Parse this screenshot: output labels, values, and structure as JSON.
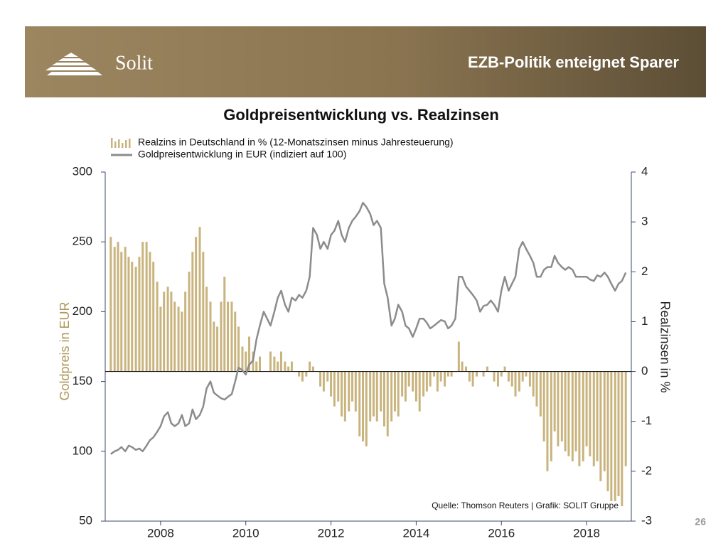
{
  "header": {
    "logo": "Solit",
    "title": "EZB-Politik enteignet Sparer"
  },
  "page_number": "26",
  "chart_data": {
    "type": "combo",
    "title": "Goldpreisentwicklung vs. Realzinsen",
    "ylabel": "Goldpreis in EUR",
    "y2label": "Realzinsen in %",
    "source": "Quelle: Thomson Reuters | Grafik: SOLIT Gruppe",
    "xlim": [
      2006.7,
      2019.05
    ],
    "xticks": [
      2008,
      2010,
      2012,
      2014,
      2016,
      2018
    ],
    "ylim": [
      50,
      300
    ],
    "yticks": [
      50,
      100,
      150,
      200,
      250,
      300
    ],
    "y2lim": [
      -3,
      4
    ],
    "y2ticks": [
      -3,
      -2,
      -1,
      0,
      1,
      2,
      3,
      4
    ],
    "legend": "top-left",
    "x": [
      2006.83,
      2006.92,
      2007.0,
      2007.08,
      2007.17,
      2007.25,
      2007.33,
      2007.42,
      2007.5,
      2007.58,
      2007.67,
      2007.75,
      2007.83,
      2007.92,
      2008.0,
      2008.08,
      2008.17,
      2008.25,
      2008.33,
      2008.42,
      2008.5,
      2008.58,
      2008.67,
      2008.75,
      2008.83,
      2008.92,
      2009.0,
      2009.08,
      2009.17,
      2009.25,
      2009.33,
      2009.42,
      2009.5,
      2009.58,
      2009.67,
      2009.75,
      2009.83,
      2009.92,
      2010.0,
      2010.08,
      2010.17,
      2010.25,
      2010.33,
      2010.42,
      2010.5,
      2010.58,
      2010.67,
      2010.75,
      2010.83,
      2010.92,
      2011.0,
      2011.08,
      2011.17,
      2011.25,
      2011.33,
      2011.42,
      2011.5,
      2011.58,
      2011.67,
      2011.75,
      2011.83,
      2011.92,
      2012.0,
      2012.08,
      2012.17,
      2012.25,
      2012.33,
      2012.42,
      2012.5,
      2012.58,
      2012.67,
      2012.75,
      2012.83,
      2012.92,
      2013.0,
      2013.08,
      2013.17,
      2013.25,
      2013.33,
      2013.42,
      2013.5,
      2013.58,
      2013.67,
      2013.75,
      2013.83,
      2013.92,
      2014.0,
      2014.08,
      2014.17,
      2014.25,
      2014.33,
      2014.42,
      2014.5,
      2014.58,
      2014.67,
      2014.75,
      2014.83,
      2014.92,
      2015.0,
      2015.08,
      2015.17,
      2015.25,
      2015.33,
      2015.42,
      2015.5,
      2015.58,
      2015.67,
      2015.75,
      2015.83,
      2015.92,
      2016.0,
      2016.08,
      2016.17,
      2016.25,
      2016.33,
      2016.42,
      2016.5,
      2016.58,
      2016.67,
      2016.75,
      2016.83,
      2016.92,
      2017.0,
      2017.08,
      2017.17,
      2017.25,
      2017.33,
      2017.42,
      2017.5,
      2017.58,
      2017.67,
      2017.75,
      2017.83,
      2017.92,
      2018.0,
      2018.08,
      2018.17,
      2018.25,
      2018.33,
      2018.42,
      2018.5,
      2018.58,
      2018.67,
      2018.75,
      2018.83,
      2018.92
    ],
    "series": [
      {
        "name": "Realzins in Deutschland in % (12-Monatszinsen minus Jahresteuerung)",
        "type": "bar",
        "axis": "y2",
        "color": "#c9b47e",
        "values": [
          2.7,
          2.5,
          2.6,
          2.4,
          2.5,
          2.3,
          2.2,
          2.1,
          2.3,
          2.6,
          2.6,
          2.4,
          2.2,
          1.8,
          1.3,
          1.6,
          1.7,
          1.6,
          1.4,
          1.3,
          1.2,
          1.6,
          2.0,
          2.4,
          2.7,
          2.9,
          2.4,
          1.7,
          1.4,
          1.0,
          0.9,
          1.4,
          1.9,
          1.4,
          1.4,
          1.2,
          0.9,
          0.5,
          0.4,
          0.7,
          0.4,
          0.2,
          0.3,
          0.0,
          0.0,
          0.4,
          0.3,
          0.2,
          0.4,
          0.2,
          0.1,
          0.2,
          0.0,
          -0.1,
          -0.2,
          -0.1,
          0.2,
          0.1,
          0.0,
          -0.3,
          -0.4,
          -0.2,
          -0.5,
          -0.7,
          -0.6,
          -0.9,
          -1.0,
          -0.8,
          -0.6,
          -0.8,
          -1.3,
          -1.4,
          -1.5,
          -1.0,
          -0.9,
          -1.0,
          -0.8,
          -1.1,
          -1.3,
          -1.0,
          -0.8,
          -0.9,
          -0.5,
          -0.6,
          -0.3,
          -0.4,
          -0.6,
          -0.8,
          -0.5,
          -0.4,
          -0.3,
          -0.1,
          -0.4,
          -0.2,
          -0.3,
          -0.1,
          -0.1,
          0.0,
          0.6,
          0.2,
          0.1,
          -0.2,
          -0.3,
          -0.1,
          0.0,
          -0.1,
          0.1,
          0.0,
          -0.2,
          -0.3,
          -0.1,
          0.1,
          -0.2,
          -0.3,
          -0.5,
          -0.4,
          -0.2,
          -0.1,
          -0.3,
          -0.5,
          -0.7,
          -0.9,
          -1.4,
          -2.0,
          -1.8,
          -1.2,
          -1.5,
          -1.4,
          -1.6,
          -1.7,
          -1.8,
          -1.6,
          -1.9,
          -1.8,
          -1.5,
          -1.7,
          -1.9,
          -1.8,
          -2.2,
          -2.0,
          -2.4,
          -2.6,
          -2.6,
          -2.5,
          -2.7,
          -1.9
        ]
      },
      {
        "name": "Goldpreisentwicklung in EUR (indiziert auf 100)",
        "type": "line",
        "axis": "y",
        "color": "#8c8c8c",
        "values": [
          98,
          100,
          101,
          103,
          100,
          104,
          103,
          101,
          102,
          100,
          104,
          108,
          110,
          114,
          118,
          125,
          128,
          120,
          118,
          120,
          126,
          118,
          120,
          130,
          123,
          126,
          132,
          145,
          150,
          142,
          140,
          138,
          137,
          139,
          141,
          150,
          160,
          158,
          155,
          162,
          165,
          180,
          190,
          200,
          195,
          190,
          200,
          210,
          215,
          205,
          200,
          210,
          208,
          212,
          210,
          215,
          225,
          260,
          255,
          245,
          250,
          245,
          255,
          258,
          265,
          255,
          250,
          260,
          265,
          268,
          272,
          278,
          275,
          270,
          262,
          265,
          260,
          220,
          210,
          190,
          195,
          205,
          200,
          190,
          188,
          182,
          188,
          195,
          195,
          192,
          188,
          190,
          192,
          194,
          193,
          188,
          190,
          195,
          225,
          225,
          218,
          215,
          212,
          208,
          200,
          204,
          205,
          208,
          205,
          200,
          215,
          225,
          215,
          220,
          225,
          245,
          250,
          245,
          240,
          235,
          225,
          225,
          230,
          232,
          232,
          240,
          235,
          232,
          230,
          232,
          230,
          225,
          225,
          225,
          225,
          223,
          222,
          226,
          225,
          228,
          225,
          220,
          215,
          220,
          222,
          228
        ]
      }
    ]
  }
}
